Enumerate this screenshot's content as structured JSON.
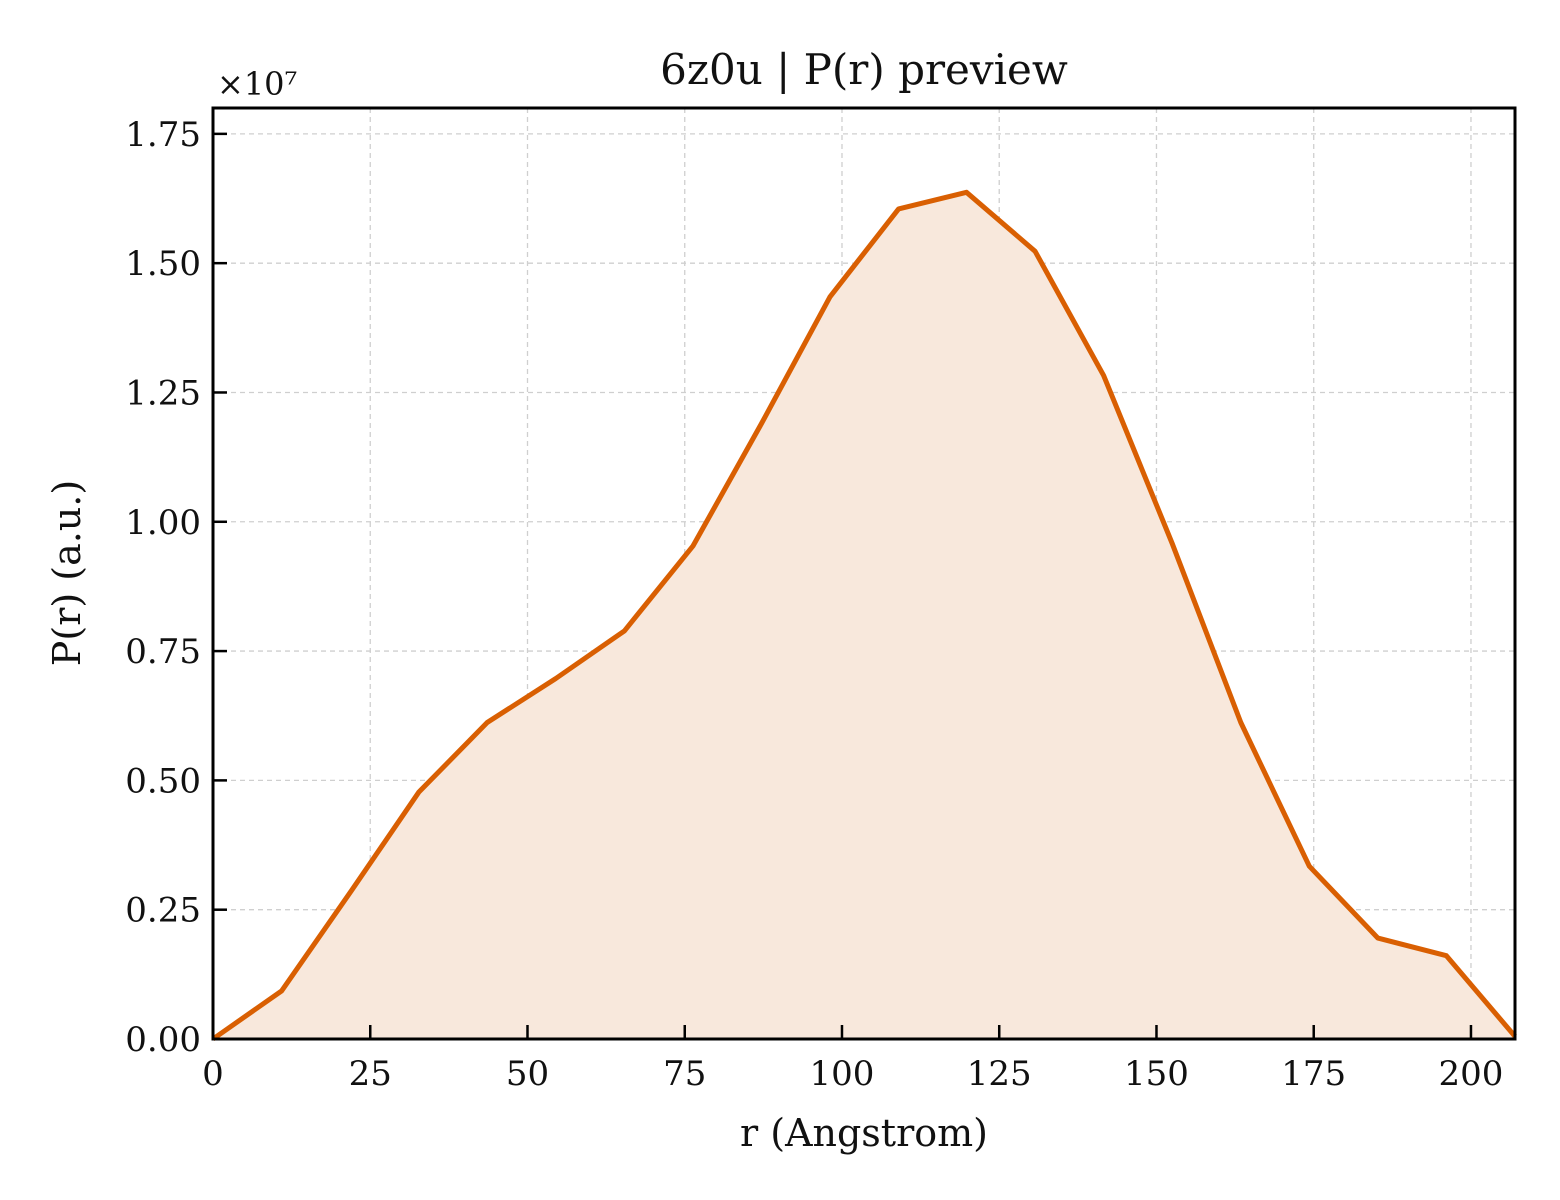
{
  "chart_data": {
    "type": "area",
    "title": "6z0u | P(r) preview",
    "xlabel": "r (Angstrom)",
    "ylabel": "P(r) (a.u.)",
    "y_offset_label": "×10⁷",
    "xlim": [
      0,
      207
    ],
    "ylim": [
      0,
      1.8
    ],
    "x_ticks": [
      0,
      25,
      50,
      75,
      100,
      125,
      150,
      175,
      200
    ],
    "y_ticks": [
      0.0,
      0.25,
      0.5,
      0.75,
      1.0,
      1.25,
      1.5,
      1.75
    ],
    "y_tick_labels": [
      "0.00",
      "0.25",
      "0.50",
      "0.75",
      "1.00",
      "1.25",
      "1.50",
      "1.75"
    ],
    "grid": true,
    "line_color": "#d95f02",
    "fill_color": "#f8e8dc",
    "series": [
      {
        "x": [
          0,
          10.9,
          21.8,
          32.7,
          43.6,
          54.5,
          65.4,
          76.3,
          87.2,
          98.1,
          109.0,
          119.8,
          130.7,
          141.6,
          152.5,
          163.4,
          174.3,
          185.2,
          196.1,
          207.0
        ],
        "values": [
          0.0,
          0.093,
          0.283,
          0.477,
          0.612,
          0.697,
          0.789,
          0.953,
          1.19,
          1.435,
          1.605,
          1.637,
          1.523,
          1.283,
          0.958,
          0.612,
          0.334,
          0.195,
          0.161,
          0.005
        ]
      }
    ]
  }
}
